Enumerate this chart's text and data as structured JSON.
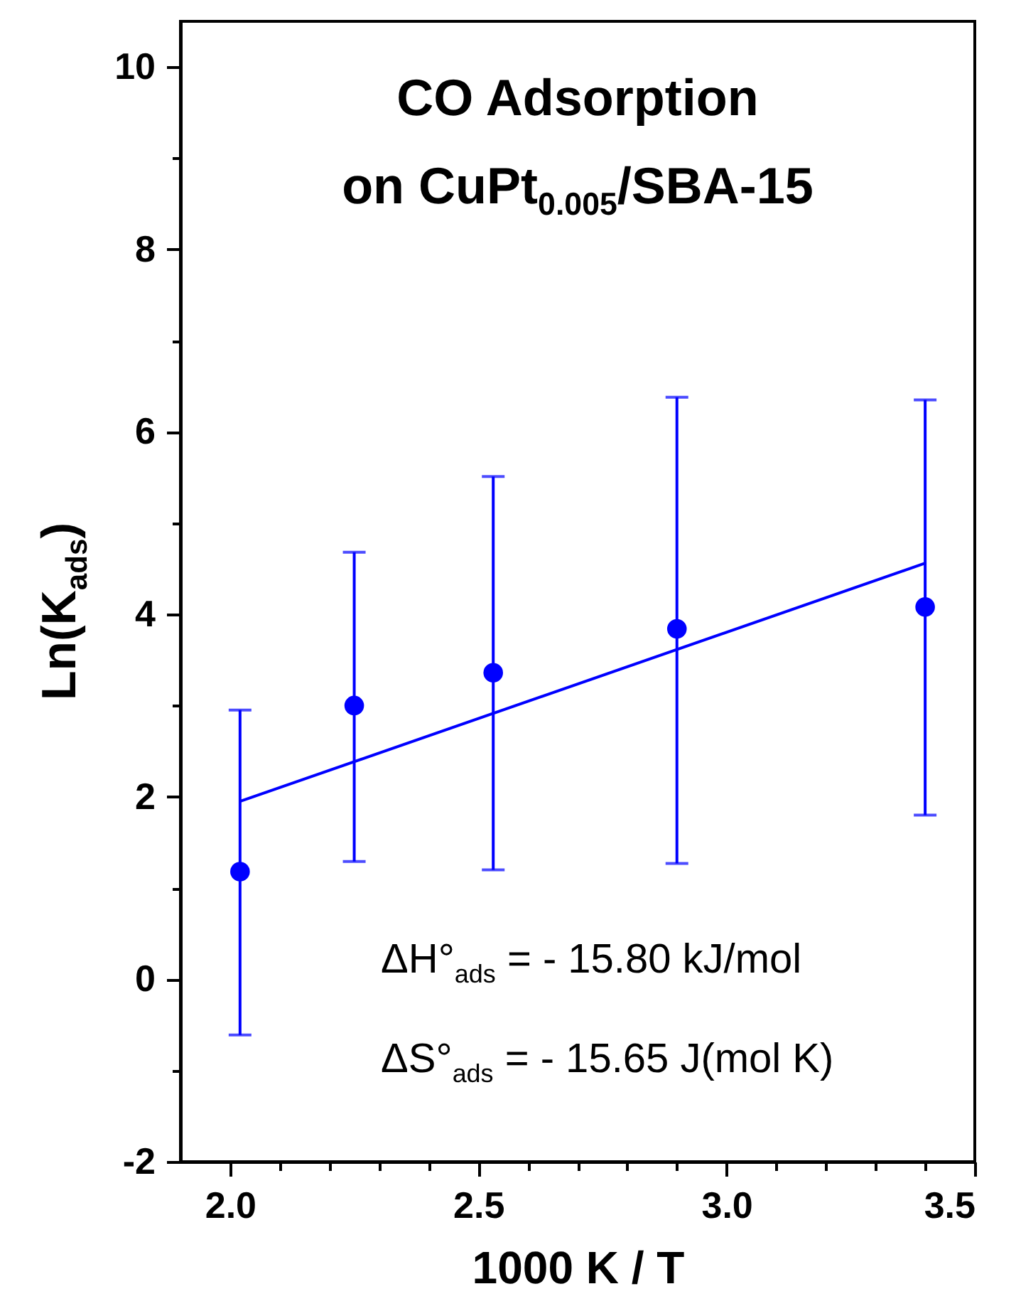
{
  "chart_data": {
    "type": "scatter",
    "title": "CO Adsorption\non CuPt$_{0.005}$/SBA-15",
    "xlabel": "1000 K / T",
    "ylabel": "Ln(K$_{ads}$)",
    "annotations": [
      "ΔH°$_{ads}$ = - 15.80 kJ/mol",
      "ΔS°$_{ads}$ = - 15.65 J(mol K)"
    ],
    "x": [
      2.02,
      2.25,
      2.53,
      2.9,
      3.4
    ],
    "series": [
      {
        "marker": "circle",
        "color": "#0000ff",
        "values": [
          1.18,
          3.0,
          3.36,
          3.84,
          4.08
        ],
        "errors": [
          [
            -0.61,
            2.95
          ],
          [
            1.29,
            4.68
          ],
          [
            1.2,
            5.51
          ],
          [
            1.27,
            6.38
          ],
          [
            1.8,
            6.35
          ]
        ]
      },
      {
        "type": "line",
        "color": "#0000ff",
        "x": [
          2.02,
          3.4
        ],
        "values": [
          1.95,
          4.56
        ]
      }
    ],
    "xlim": [
      1.9,
      3.5
    ],
    "xticks": [
      {
        "value": 2.0,
        "label": "2.0"
      },
      {
        "value": 2.1,
        "label": null
      },
      {
        "value": 2.2,
        "label": null
      },
      {
        "value": 2.3,
        "label": null
      },
      {
        "value": 2.4,
        "label": null
      },
      {
        "value": 2.5,
        "label": "2.5"
      },
      {
        "value": 2.6,
        "label": null
      },
      {
        "value": 2.7,
        "label": null
      },
      {
        "value": 2.8,
        "label": null
      },
      {
        "value": 2.9,
        "label": null
      },
      {
        "value": 3.0,
        "label": "3.0"
      },
      {
        "value": 3.1,
        "label": null
      },
      {
        "value": 3.2,
        "label": null
      },
      {
        "value": 3.3,
        "label": null
      },
      {
        "value": 3.4,
        "label": null
      },
      {
        "value": 3.5,
        "label": "3.5"
      }
    ],
    "ylim": [
      -2,
      10.5
    ],
    "yticks": [
      -2,
      {
        "value": -1,
        "label": null
      },
      0,
      {
        "value": 1,
        "label": null
      },
      2,
      {
        "value": 3,
        "label": null
      },
      4,
      {
        "value": 5,
        "label": null
      },
      6,
      {
        "value": 7,
        "label": null
      },
      8,
      {
        "value": 9,
        "label": null
      },
      10
    ],
    "grid": false
  }
}
